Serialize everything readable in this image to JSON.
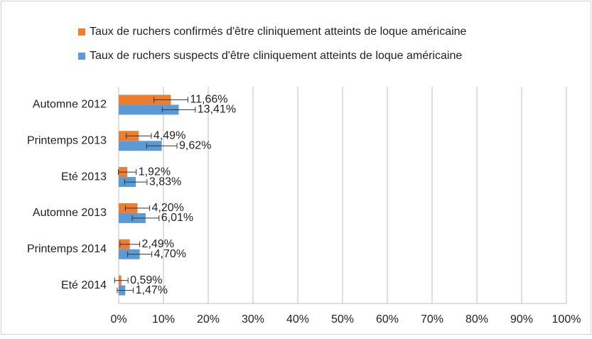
{
  "chart_data": {
    "type": "hbar",
    "categories": [
      "Automne 2012",
      "Printemps 2013",
      "Eté 2013",
      "Automne 2013",
      "Printemps 2014",
      "Eté 2014"
    ],
    "series": [
      {
        "name": "Taux de ruchers confirmés d'être cliniquement atteints de loque américaine",
        "color": "#ed7d31",
        "values": [
          11.66,
          4.49,
          1.92,
          4.2,
          2.49,
          0.59
        ],
        "value_labels": [
          "11,66%",
          "4,49%",
          "1,92%",
          "4,20%",
          "2,49%",
          "0,59%"
        ],
        "errors": [
          3.8,
          2.8,
          2.0,
          2.7,
          2.2,
          1.5
        ]
      },
      {
        "name": "Taux de ruchers suspects d'être cliniquement atteints de loque américaine",
        "color": "#5b9bd5",
        "values": [
          13.41,
          9.62,
          3.83,
          6.01,
          4.7,
          1.47
        ],
        "value_labels": [
          "13,41%",
          "9,62%",
          "3,83%",
          "6,01%",
          "4,70%",
          "1,47%"
        ],
        "errors": [
          3.7,
          3.4,
          2.5,
          3.0,
          2.7,
          1.8
        ]
      }
    ],
    "xlim": [
      0,
      100
    ],
    "xticks": [
      {
        "value": 0,
        "label": "0%"
      },
      {
        "value": 10,
        "label": "10%"
      },
      {
        "value": 20,
        "label": "20%"
      },
      {
        "value": 30,
        "label": "30%"
      },
      {
        "value": 40,
        "label": "40%"
      },
      {
        "value": 50,
        "label": "50%"
      },
      {
        "value": 60,
        "label": "60%"
      },
      {
        "value": 70,
        "label": "70%"
      },
      {
        "value": 80,
        "label": "80%"
      },
      {
        "value": 90,
        "label": "90%"
      },
      {
        "value": 100,
        "label": "100%"
      }
    ],
    "grid": true,
    "legend": "top"
  }
}
